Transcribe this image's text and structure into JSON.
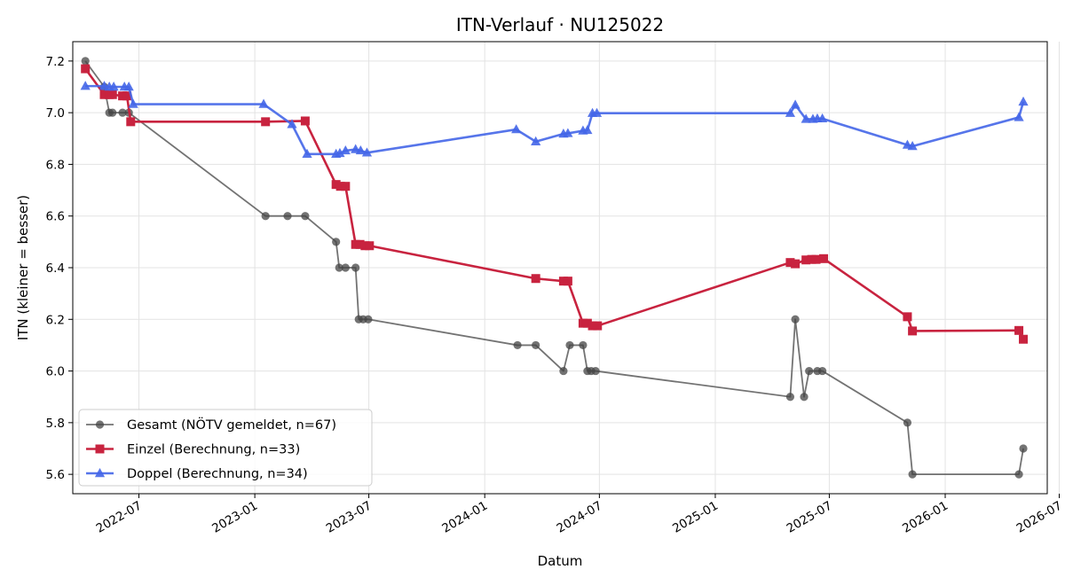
{
  "chart_data": {
    "type": "line",
    "title": "ITN-Verlauf · NU125022",
    "xlabel": "Datum",
    "ylabel": "ITN  (kleiner = besser)",
    "xlim": [
      "2022-03-18",
      "2026-06-12"
    ],
    "ylim": [
      5.525,
      7.275
    ],
    "x_ticks": [
      "2022-07",
      "2023-01",
      "2023-07",
      "2024-01",
      "2024-07",
      "2025-01",
      "2025-07",
      "2026-01",
      "2026-07"
    ],
    "y_ticks": [
      5.6,
      5.8,
      6.0,
      6.2,
      6.4,
      6.6,
      6.8,
      7.0,
      7.2
    ],
    "y_tick_labels": [
      "5.6",
      "5.8",
      "6.0",
      "6.2",
      "6.4",
      "6.6",
      "6.8",
      "7.0",
      "7.2"
    ],
    "grid": true,
    "legend": "bottom-left",
    "series": [
      {
        "name": "Gesamt (NÖTV gemeldet, n=67)",
        "color": "#444444",
        "marker": "circle",
        "points": [
          [
            "2022-04-07",
            7.2
          ],
          [
            "2022-05-07",
            7.1
          ],
          [
            "2022-05-15",
            7.0
          ],
          [
            "2022-05-20",
            7.0
          ],
          [
            "2022-06-05",
            7.0
          ],
          [
            "2022-06-15",
            7.0
          ],
          [
            "2023-01-18",
            6.6
          ],
          [
            "2023-02-22",
            6.6
          ],
          [
            "2023-03-22",
            6.6
          ],
          [
            "2023-05-10",
            6.5
          ],
          [
            "2023-05-15",
            6.4
          ],
          [
            "2023-05-25",
            6.4
          ],
          [
            "2023-06-10",
            6.4
          ],
          [
            "2023-06-15",
            6.2
          ],
          [
            "2023-06-22",
            6.2
          ],
          [
            "2023-06-30",
            6.2
          ],
          [
            "2024-02-22",
            6.1
          ],
          [
            "2024-03-22",
            6.1
          ],
          [
            "2024-05-05",
            6.0
          ],
          [
            "2024-05-15",
            6.1
          ],
          [
            "2024-06-05",
            6.1
          ],
          [
            "2024-06-12",
            6.0
          ],
          [
            "2024-06-18",
            6.0
          ],
          [
            "2024-06-25",
            6.0
          ],
          [
            "2025-04-30",
            5.9
          ],
          [
            "2025-05-08",
            6.2
          ],
          [
            "2025-05-22",
            5.9
          ],
          [
            "2025-05-30",
            6.0
          ],
          [
            "2025-06-12",
            6.0
          ],
          [
            "2025-06-20",
            6.0
          ],
          [
            "2025-11-02",
            5.8
          ],
          [
            "2025-11-10",
            5.6
          ],
          [
            "2026-04-28",
            5.6
          ],
          [
            "2026-05-05",
            5.7
          ]
        ]
      },
      {
        "name": "Einzel (Berechnung, n=33)",
        "color": "#c8233f",
        "marker": "square",
        "points": [
          [
            "2022-04-07",
            7.17
          ],
          [
            "2022-05-07",
            7.07
          ],
          [
            "2022-05-15",
            7.07
          ],
          [
            "2022-05-20",
            7.07
          ],
          [
            "2022-06-05",
            7.065
          ],
          [
            "2022-06-12",
            7.065
          ],
          [
            "2022-06-18",
            6.965
          ],
          [
            "2023-01-18",
            6.965
          ],
          [
            "2023-03-22",
            6.968
          ],
          [
            "2023-05-10",
            6.722
          ],
          [
            "2023-05-17",
            6.715
          ],
          [
            "2023-05-25",
            6.715
          ],
          [
            "2023-06-10",
            6.49
          ],
          [
            "2023-06-17",
            6.49
          ],
          [
            "2023-06-25",
            6.485
          ],
          [
            "2023-07-02",
            6.485
          ],
          [
            "2024-03-22",
            6.358
          ],
          [
            "2024-05-05",
            6.348
          ],
          [
            "2024-05-12",
            6.348
          ],
          [
            "2024-06-05",
            6.185
          ],
          [
            "2024-06-12",
            6.185
          ],
          [
            "2024-06-20",
            6.175
          ],
          [
            "2024-06-28",
            6.175
          ],
          [
            "2025-04-30",
            6.42
          ],
          [
            "2025-05-08",
            6.415
          ],
          [
            "2025-05-25",
            6.43
          ],
          [
            "2025-06-03",
            6.432
          ],
          [
            "2025-06-10",
            6.432
          ],
          [
            "2025-06-22",
            6.435
          ],
          [
            "2025-11-02",
            6.21
          ],
          [
            "2025-11-10",
            6.155
          ],
          [
            "2026-04-28",
            6.157
          ],
          [
            "2026-05-05",
            6.123
          ]
        ]
      },
      {
        "name": "Doppel (Berechnung, n=34)",
        "color": "#4466e8",
        "marker": "triangle",
        "points": [
          [
            "2022-04-07",
            7.103
          ],
          [
            "2022-05-07",
            7.103
          ],
          [
            "2022-05-15",
            7.1
          ],
          [
            "2022-05-22",
            7.1
          ],
          [
            "2022-06-08",
            7.1
          ],
          [
            "2022-06-15",
            7.1
          ],
          [
            "2022-06-22",
            7.033
          ],
          [
            "2023-01-15",
            7.033
          ],
          [
            "2023-03-01",
            6.955
          ],
          [
            "2023-03-25",
            6.84
          ],
          [
            "2023-05-10",
            6.84
          ],
          [
            "2023-05-16",
            6.843
          ],
          [
            "2023-05-25",
            6.853
          ],
          [
            "2023-06-10",
            6.858
          ],
          [
            "2023-06-18",
            6.853
          ],
          [
            "2023-06-28",
            6.845
          ],
          [
            "2024-02-20",
            6.935
          ],
          [
            "2024-03-22",
            6.888
          ],
          [
            "2024-05-05",
            6.918
          ],
          [
            "2024-05-12",
            6.92
          ],
          [
            "2024-06-05",
            6.93
          ],
          [
            "2024-06-12",
            6.932
          ],
          [
            "2024-06-20",
            6.998
          ],
          [
            "2024-06-27",
            6.998
          ],
          [
            "2025-04-30",
            6.998
          ],
          [
            "2025-05-08",
            7.03
          ],
          [
            "2025-05-25",
            6.975
          ],
          [
            "2025-06-05",
            6.975
          ],
          [
            "2025-06-12",
            6.977
          ],
          [
            "2025-06-20",
            6.977
          ],
          [
            "2025-11-02",
            6.875
          ],
          [
            "2025-11-10",
            6.87
          ],
          [
            "2026-04-28",
            6.982
          ],
          [
            "2026-05-05",
            7.042
          ]
        ]
      }
    ]
  }
}
